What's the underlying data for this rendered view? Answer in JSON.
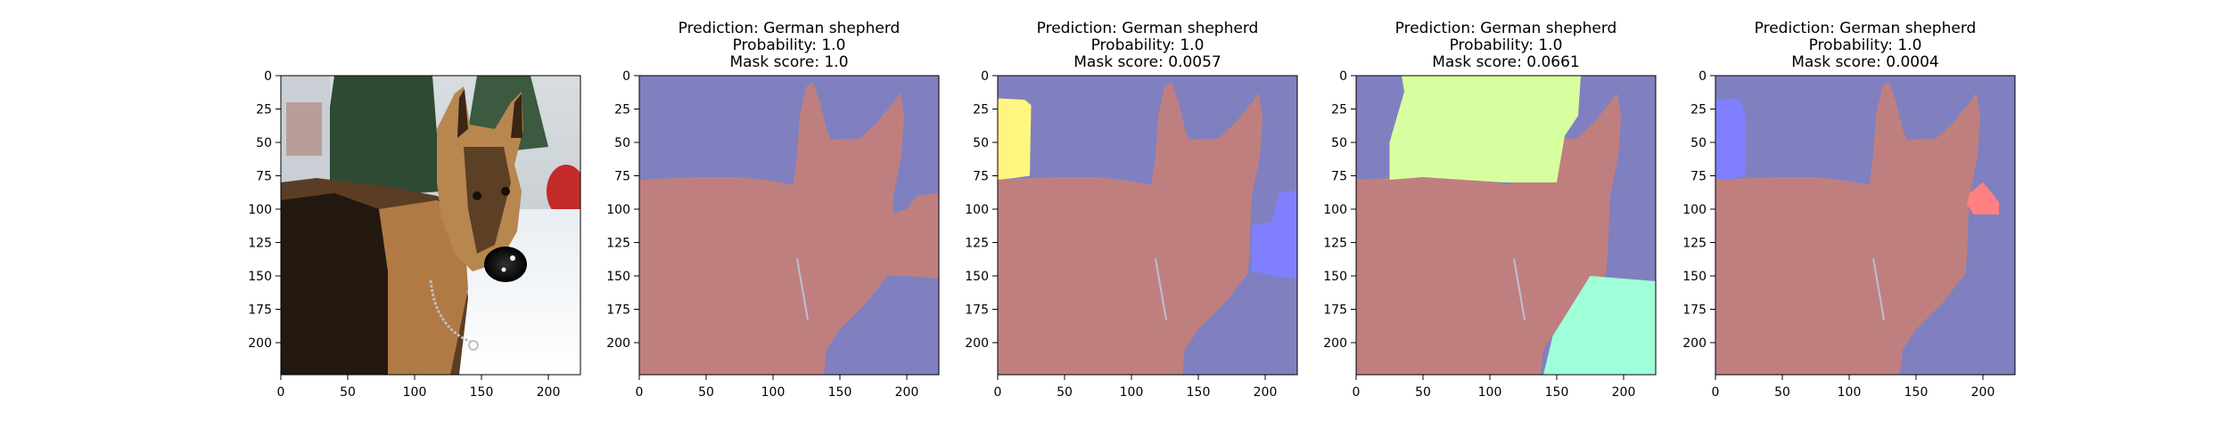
{
  "chart_data": [
    {
      "type": "image",
      "title_lines": [],
      "image_description": "Photo of a German shepherd standing in snow",
      "x_ticks": [
        0,
        50,
        100,
        150,
        200
      ],
      "y_ticks": [
        0,
        25,
        50,
        75,
        100,
        125,
        150,
        175,
        200
      ],
      "xlim": [
        0,
        224
      ],
      "ylim": [
        224,
        0
      ]
    },
    {
      "type": "image",
      "title_lines": [
        "Prediction: German shepherd",
        "Probability: 1.0",
        "Mask score: 1.0"
      ],
      "prediction": "German shepherd",
      "probability": 1.0,
      "mask_score": 1.0,
      "x_ticks": [
        0,
        50,
        100,
        150,
        200
      ],
      "y_ticks": [
        0,
        25,
        50,
        75,
        100,
        125,
        150,
        175,
        200
      ],
      "xlim": [
        0,
        224
      ],
      "ylim": [
        224,
        0
      ],
      "background_color": "#8080c0",
      "dog_color": "#c07f7f",
      "extra_regions": [
        {
          "color": "#c07f7f",
          "points": [
            [
              187,
              104
            ],
            [
              200,
              100
            ],
            [
              208,
              90
            ],
            [
              224,
              88
            ],
            [
              224,
              152
            ],
            [
              200,
              150
            ],
            [
              187,
              150
            ]
          ]
        }
      ]
    },
    {
      "type": "image",
      "title_lines": [
        "Prediction: German shepherd",
        "Probability: 1.0",
        "Mask score: 0.0057"
      ],
      "prediction": "German shepherd",
      "probability": 1.0,
      "mask_score": 0.0057,
      "x_ticks": [
        0,
        50,
        100,
        150,
        200
      ],
      "y_ticks": [
        0,
        25,
        50,
        75,
        100,
        125,
        150,
        175,
        200
      ],
      "xlim": [
        0,
        224
      ],
      "ylim": [
        224,
        0
      ],
      "background_color": "#8080c0",
      "dog_color": "#c07f7f",
      "extra_regions": [
        {
          "color": "#fff680",
          "points": [
            [
              0,
              17
            ],
            [
              20,
              18
            ],
            [
              25,
              22
            ],
            [
              24,
              75
            ],
            [
              10,
              77
            ],
            [
              0,
              78
            ]
          ]
        },
        {
          "color": "#8080ff",
          "points": [
            [
              190,
              112
            ],
            [
              205,
              110
            ],
            [
              210,
              88
            ],
            [
              224,
              86
            ],
            [
              224,
              152
            ],
            [
              205,
              150
            ],
            [
              190,
              146
            ]
          ]
        }
      ]
    },
    {
      "type": "image",
      "title_lines": [
        "Prediction: German shepherd",
        "Probability: 1.0",
        "Mask score: 0.0661"
      ],
      "prediction": "German shepherd",
      "probability": 1.0,
      "mask_score": 0.0661,
      "x_ticks": [
        0,
        50,
        100,
        150,
        200
      ],
      "y_ticks": [
        0,
        25,
        50,
        75,
        100,
        125,
        150,
        175,
        200
      ],
      "xlim": [
        0,
        224
      ],
      "ylim": [
        224,
        0
      ],
      "background_color": "#8080c0",
      "dog_color": "#c07f7f",
      "extra_regions": [
        {
          "color": "#d8ff9f",
          "points": [
            [
              34,
              0
            ],
            [
              168,
              0
            ],
            [
              166,
              30
            ],
            [
              156,
              45
            ],
            [
              150,
              80
            ],
            [
              110,
              80
            ],
            [
              50,
              76
            ],
            [
              25,
              78
            ],
            [
              25,
              50
            ],
            [
              36,
              12
            ]
          ]
        },
        {
          "color": "#9fffd8",
          "points": [
            [
              175,
              150
            ],
            [
              224,
              154
            ],
            [
              224,
              224
            ],
            [
              140,
              224
            ],
            [
              147,
              195
            ]
          ]
        }
      ]
    },
    {
      "type": "image",
      "title_lines": [
        "Prediction: German shepherd",
        "Probability: 1.0",
        "Mask score: 0.0004"
      ],
      "prediction": "German shepherd",
      "probability": 1.0,
      "mask_score": 0.0004,
      "x_ticks": [
        0,
        50,
        100,
        150,
        200
      ],
      "y_ticks": [
        0,
        25,
        50,
        75,
        100,
        125,
        150,
        175,
        200
      ],
      "xlim": [
        0,
        224
      ],
      "ylim": [
        224,
        0
      ],
      "background_color": "#8080c0",
      "dog_color": "#c07f7f",
      "extra_regions": [
        {
          "color": "#8080ff",
          "points": [
            [
              0,
              18
            ],
            [
              18,
              17
            ],
            [
              22,
              30
            ],
            [
              22,
              75
            ],
            [
              10,
              78
            ],
            [
              0,
              78
            ]
          ]
        },
        {
          "color": "#ff8080",
          "points": [
            [
              190,
              88
            ],
            [
              200,
              80
            ],
            [
              206,
              87
            ],
            [
              212,
              95
            ],
            [
              212,
              104
            ],
            [
              193,
              104
            ],
            [
              188,
              96
            ]
          ]
        }
      ]
    }
  ]
}
